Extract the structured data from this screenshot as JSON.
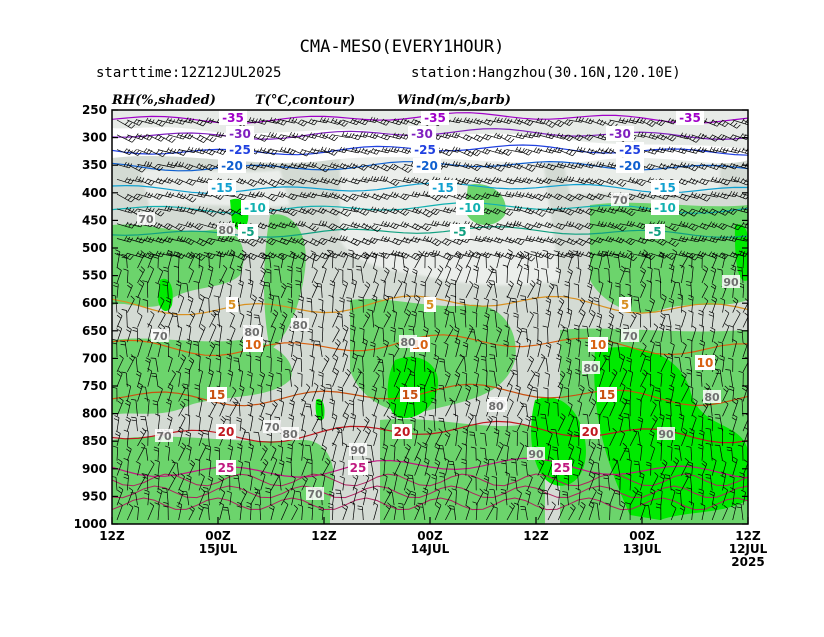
{
  "header": {
    "title": "CMA-MESO(EVERY1HOUR)",
    "starttime": "starttime:12Z12JUL2025",
    "station": "station:Hangzhou(30.16N,120.10E)",
    "label_rh": "RH(%,shaded)",
    "label_t": "T(°C,contour)",
    "label_wind": "Wind(m/s,barb)"
  },
  "chart_data": {
    "type": "heatmap",
    "title": "CMA-MESO(EVERY1HOUR)",
    "y_axis": {
      "unit": "hPa",
      "ticks": [
        "250",
        "300",
        "350",
        "400",
        "450",
        "500",
        "550",
        "600",
        "650",
        "700",
        "750",
        "800",
        "850",
        "900",
        "950",
        "1000"
      ],
      "range": [
        250,
        1000
      ]
    },
    "x_axis": {
      "direction": "time increases right-to-left",
      "ticks": [
        {
          "label": "12Z",
          "sub": ""
        },
        {
          "label": "00Z",
          "sub": "15JUL"
        },
        {
          "label": "12Z",
          "sub": ""
        },
        {
          "label": "00Z",
          "sub": "14JUL"
        },
        {
          "label": "12Z",
          "sub": ""
        },
        {
          "label": "00Z",
          "sub": "13JUL"
        },
        {
          "label": "12Z",
          "sub": "12JUL",
          "sub2": "2025"
        }
      ]
    },
    "shading": {
      "variable": "RH (%)",
      "levels": [
        70,
        80,
        90
      ],
      "colors": [
        "#d4dbd4",
        "#6cd46c",
        "#00ea00"
      ]
    },
    "temperature_contours": [
      {
        "value": -35,
        "color": "#a000c8",
        "labels": [
          "-35",
          "-35",
          "-35"
        ]
      },
      {
        "value": -30,
        "color": "#8020c0",
        "labels": [
          "-30",
          "-30",
          "-30"
        ]
      },
      {
        "value": -25,
        "color": "#2040e0",
        "labels": [
          "-25",
          "-25",
          "-25"
        ]
      },
      {
        "value": -20,
        "color": "#1060d0",
        "labels": [
          "-20",
          "-20",
          "-20"
        ]
      },
      {
        "value": -15,
        "color": "#10a0d0",
        "labels": [
          "-15",
          "-15",
          "-15"
        ]
      },
      {
        "value": -10,
        "color": "#10b0b0",
        "labels": [
          "-10",
          "-10",
          "-10"
        ]
      },
      {
        "value": -5,
        "color": "#10a080",
        "labels": [
          "-5",
          "-5",
          "-5"
        ]
      },
      {
        "value": 5,
        "color": "#d89020",
        "labels": [
          "5",
          "5",
          "5"
        ]
      },
      {
        "value": 10,
        "color": "#d86010",
        "labels": [
          "10",
          "10",
          "10",
          "10"
        ]
      },
      {
        "value": 15,
        "color": "#c85010",
        "labels": [
          "15",
          "15",
          "15"
        ]
      },
      {
        "value": 20,
        "color": "#c01820",
        "labels": [
          "20",
          "20",
          "20"
        ]
      },
      {
        "value": 25,
        "color": "#c01880",
        "labels": [
          "25",
          "25",
          "25"
        ]
      }
    ],
    "rh_labels": [
      "70",
      "70",
      "70",
      "80",
      "80",
      "70",
      "70",
      "80",
      "80",
      "90",
      "80",
      "90",
      "90",
      "80",
      "70",
      "90",
      "70",
      "90",
      "80",
      "80"
    ],
    "grid": false,
    "legend": "none"
  }
}
